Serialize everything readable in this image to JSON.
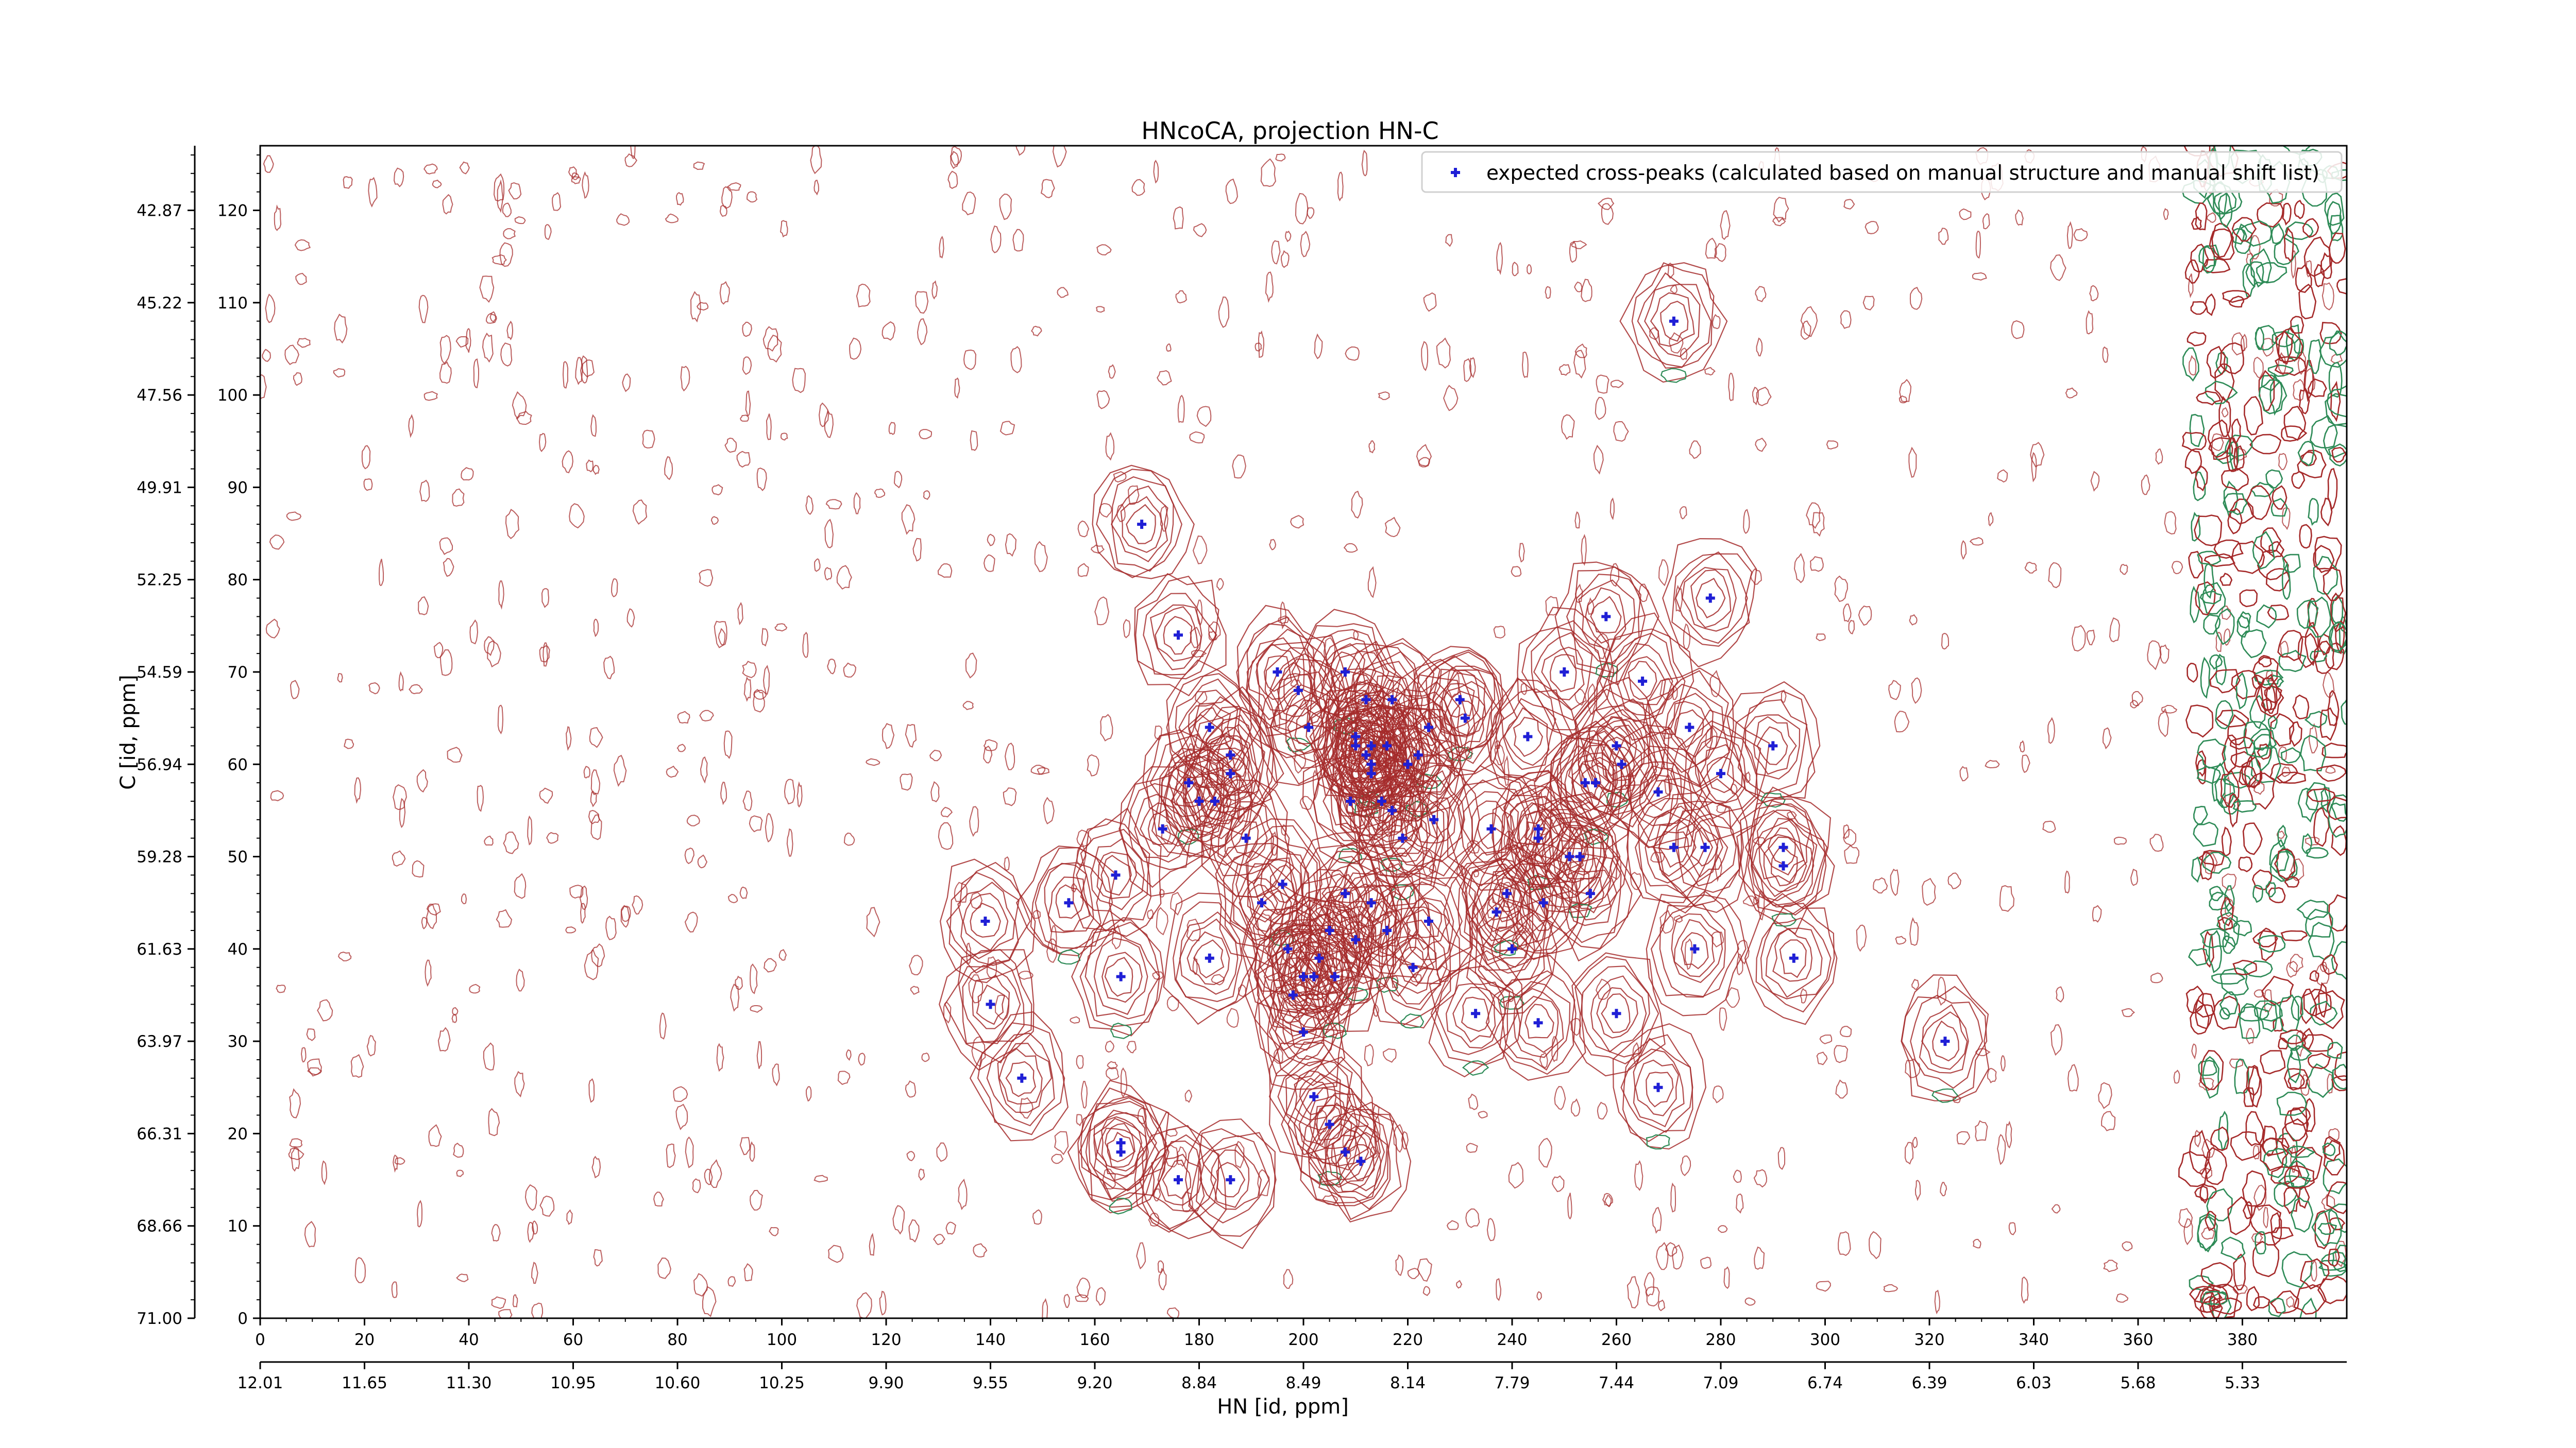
{
  "chart_data": {
    "type": "scatter",
    "title": "HNcoCA, projection HN-C",
    "xlabel": "HN [id, ppm]",
    "ylabel": "C [id, ppm]",
    "xlim": [
      0,
      400
    ],
    "ylim": [
      0,
      127
    ],
    "x_ticks": [
      0,
      20,
      40,
      60,
      80,
      100,
      120,
      140,
      160,
      180,
      200,
      220,
      240,
      260,
      280,
      300,
      320,
      340,
      360,
      380
    ],
    "y_ticks": [
      0,
      10,
      20,
      30,
      40,
      50,
      60,
      70,
      80,
      90,
      100,
      110,
      120
    ],
    "hn_ppm_ticks": [
      "12.01",
      "11.65",
      "11.30",
      "10.95",
      "10.60",
      "10.25",
      "9.90",
      "9.55",
      "9.20",
      "8.84",
      "8.49",
      "8.14",
      "7.79",
      "7.44",
      "7.09",
      "6.74",
      "6.39",
      "6.03",
      "5.68",
      "5.33"
    ],
    "c_ppm_ticks": [
      "71.00",
      "68.66",
      "66.31",
      "63.97",
      "61.63",
      "59.28",
      "56.94",
      "54.59",
      "52.25",
      "49.91",
      "47.56",
      "45.22",
      "42.87"
    ],
    "grid": false,
    "legend_position": "top-right",
    "colors": {
      "positive_contour": "#a52a2a",
      "negative_contour": "#2e8b57",
      "marker": "#1f1fd6"
    },
    "series": [
      {
        "name": "expected cross-peaks (calculated based on manual structure and manual shift list)",
        "points": [
          [
            271,
            108
          ],
          [
            169,
            86
          ],
          [
            278,
            78
          ],
          [
            258,
            76
          ],
          [
            176,
            74
          ],
          [
            195,
            70
          ],
          [
            208,
            70
          ],
          [
            250,
            70
          ],
          [
            265,
            69
          ],
          [
            199,
            68
          ],
          [
            212,
            67
          ],
          [
            217,
            67
          ],
          [
            230,
            67
          ],
          [
            182,
            64
          ],
          [
            201,
            64
          ],
          [
            224,
            64
          ],
          [
            231,
            65
          ],
          [
            210,
            63
          ],
          [
            213,
            62
          ],
          [
            216,
            62
          ],
          [
            243,
            63
          ],
          [
            260,
            62
          ],
          [
            274,
            64
          ],
          [
            210,
            62
          ],
          [
            212,
            61
          ],
          [
            213,
            60
          ],
          [
            220,
            60
          ],
          [
            222,
            61
          ],
          [
            186,
            61
          ],
          [
            186,
            59
          ],
          [
            178,
            58
          ],
          [
            180,
            56
          ],
          [
            183,
            56
          ],
          [
            209,
            56
          ],
          [
            213,
            59
          ],
          [
            215,
            56
          ],
          [
            217,
            55
          ],
          [
            261,
            60
          ],
          [
            254,
            58
          ],
          [
            256,
            58
          ],
          [
            268,
            57
          ],
          [
            280,
            59
          ],
          [
            290,
            62
          ],
          [
            173,
            53
          ],
          [
            189,
            52
          ],
          [
            219,
            52
          ],
          [
            225,
            54
          ],
          [
            236,
            53
          ],
          [
            245,
            53
          ],
          [
            245,
            52
          ],
          [
            251,
            50
          ],
          [
            253,
            50
          ],
          [
            271,
            51
          ],
          [
            277,
            51
          ],
          [
            292,
            49
          ],
          [
            292,
            51
          ],
          [
            164,
            48
          ],
          [
            196,
            47
          ],
          [
            208,
            46
          ],
          [
            213,
            45
          ],
          [
            216,
            42
          ],
          [
            192,
            45
          ],
          [
            205,
            42
          ],
          [
            155,
            45
          ],
          [
            139,
            43
          ],
          [
            237,
            44
          ],
          [
            239,
            46
          ],
          [
            246,
            45
          ],
          [
            255,
            46
          ],
          [
            210,
            41
          ],
          [
            203,
            39
          ],
          [
            182,
            39
          ],
          [
            165,
            37
          ],
          [
            200,
            37
          ],
          [
            202,
            37
          ],
          [
            206,
            37
          ],
          [
            197,
            40
          ],
          [
            224,
            43
          ],
          [
            240,
            40
          ],
          [
            275,
            40
          ],
          [
            294,
            39
          ],
          [
            221,
            38
          ],
          [
            140,
            34
          ],
          [
            198,
            35
          ],
          [
            233,
            33
          ],
          [
            260,
            33
          ],
          [
            245,
            32
          ],
          [
            323,
            30
          ],
          [
            200,
            31
          ],
          [
            146,
            26
          ],
          [
            268,
            25
          ],
          [
            202,
            24
          ],
          [
            165,
            19
          ],
          [
            205,
            21
          ],
          [
            208,
            18
          ],
          [
            211,
            17
          ],
          [
            165,
            18
          ],
          [
            176,
            15
          ],
          [
            186,
            15
          ]
        ]
      }
    ]
  }
}
